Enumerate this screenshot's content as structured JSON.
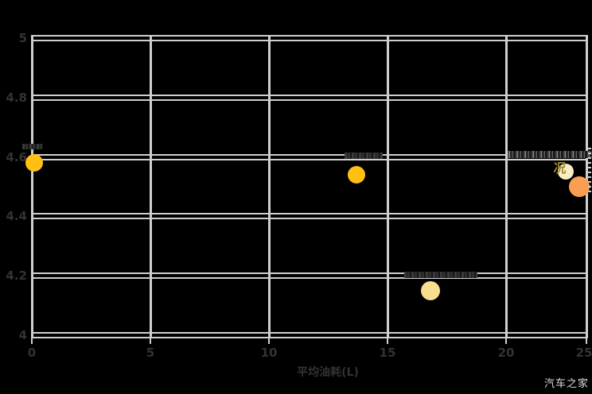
{
  "watermark": "汽车之家",
  "axis_title": "平均油耗(L)",
  "chart_data": {
    "type": "scatter",
    "title": "",
    "xlabel": "平均油耗(L)",
    "ylabel": "",
    "xlim": [
      0,
      25
    ],
    "ylim": [
      4,
      5
    ],
    "grid": true,
    "xticks": {
      "values": [
        0,
        5,
        10,
        15,
        20,
        25
      ],
      "labels": [
        "0",
        "5",
        "10",
        "15",
        "20",
        "25"
      ]
    },
    "yticks": {
      "values": [
        4,
        4.2,
        4.4,
        4.6,
        4.8,
        5
      ],
      "labels": [
        "4",
        "4.2",
        "4.4",
        "4.6",
        "4.8",
        "5"
      ]
    },
    "points": [
      {
        "x": 0.1,
        "y": 4.58,
        "color": "#ffc013",
        "size": 11,
        "label": ""
      },
      {
        "x": 13.7,
        "y": 4.54,
        "color": "#ffc013",
        "size": 11,
        "label": ""
      },
      {
        "x": 16.8,
        "y": 4.15,
        "color": "#f8de8f",
        "size": 12,
        "label": ""
      },
      {
        "x": 22.5,
        "y": 4.55,
        "color": "#f8edc8",
        "size": 10,
        "label": "况"
      },
      {
        "x": 23.1,
        "y": 4.5,
        "color": "#fa9e51",
        "size": 13,
        "label": ""
      }
    ],
    "colors": {
      "background": "#000000",
      "grid": "#cfcfcf",
      "tick_label": "#333333",
      "axis_title": "#333333",
      "point_label": "#a18a2a",
      "watermark": "#dedede"
    }
  }
}
